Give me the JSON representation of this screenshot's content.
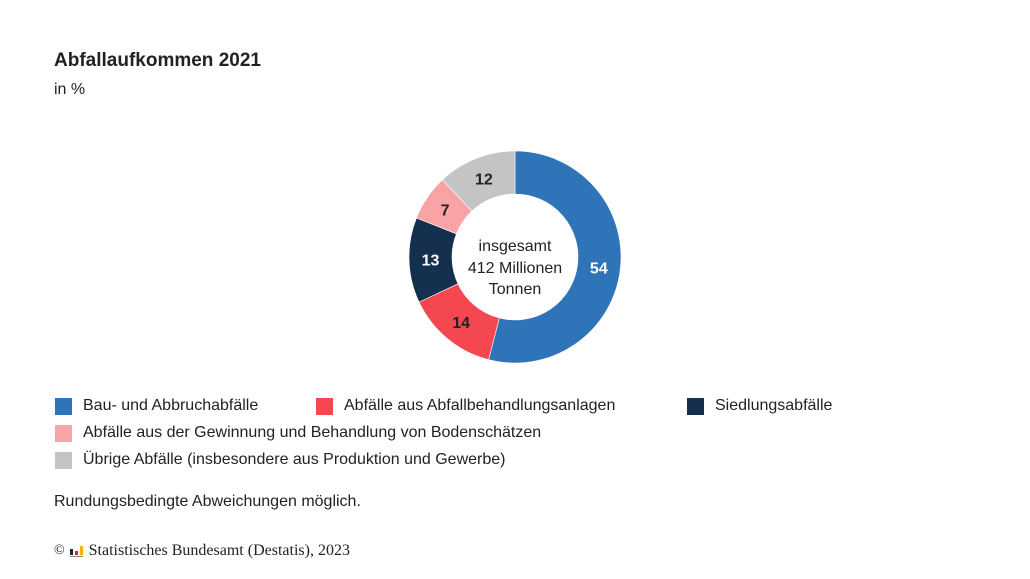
{
  "header": {
    "title": "Abfallaufkommen 2021",
    "subtitle": "in %"
  },
  "chart_data": {
    "type": "pie",
    "variant": "donut",
    "title": "Abfallaufkommen 2021",
    "subtitle": "in %",
    "unit": "%",
    "center_label": [
      "insgesamt",
      "412 Millionen",
      "Tonnen"
    ],
    "categories": [
      "Bau- und Abbruchabfälle",
      "Abfälle aus Abfallbehandlungsanlagen",
      "Siedlungsabfälle",
      "Abfälle aus der Gewinnung und Behandlung von Bodenschätzen",
      "Übrige Abfälle (insbesondere aus Produktion und Gewerbe)"
    ],
    "values": [
      54,
      14,
      13,
      7,
      12
    ],
    "colors": [
      "#2f73b8",
      "#f4474f",
      "#15304f",
      "#f9a3a5",
      "#c4c4c4"
    ],
    "label_colors": [
      "#ffffff",
      "#222222",
      "#ffffff",
      "#222222",
      "#222222"
    ],
    "start": "top, clockwise",
    "legend_position": "bottom"
  },
  "legend": {
    "items": [
      {
        "label": "Bau- und Abbruchabfälle",
        "color": "#2f73b8"
      },
      {
        "label": "Abfälle aus Abfallbehandlungsanlagen",
        "color": "#f4474f"
      },
      {
        "label": "Siedlungsabfälle",
        "color": "#15304f"
      },
      {
        "label": "Abfälle aus der Gewinnung und Behandlung von Bodenschätzen",
        "color": "#f9a3a5"
      },
      {
        "label": "Übrige Abfälle (insbesondere aus Produktion und Gewerbe)",
        "color": "#c4c4c4"
      }
    ]
  },
  "footer": {
    "note": "Rundungsbedingte Abweichungen möglich.",
    "copyright_symbol": "©",
    "logo_icon": "destatis-bar-logo-icon",
    "source": "Statistisches Bundesamt (Destatis), 2023"
  }
}
